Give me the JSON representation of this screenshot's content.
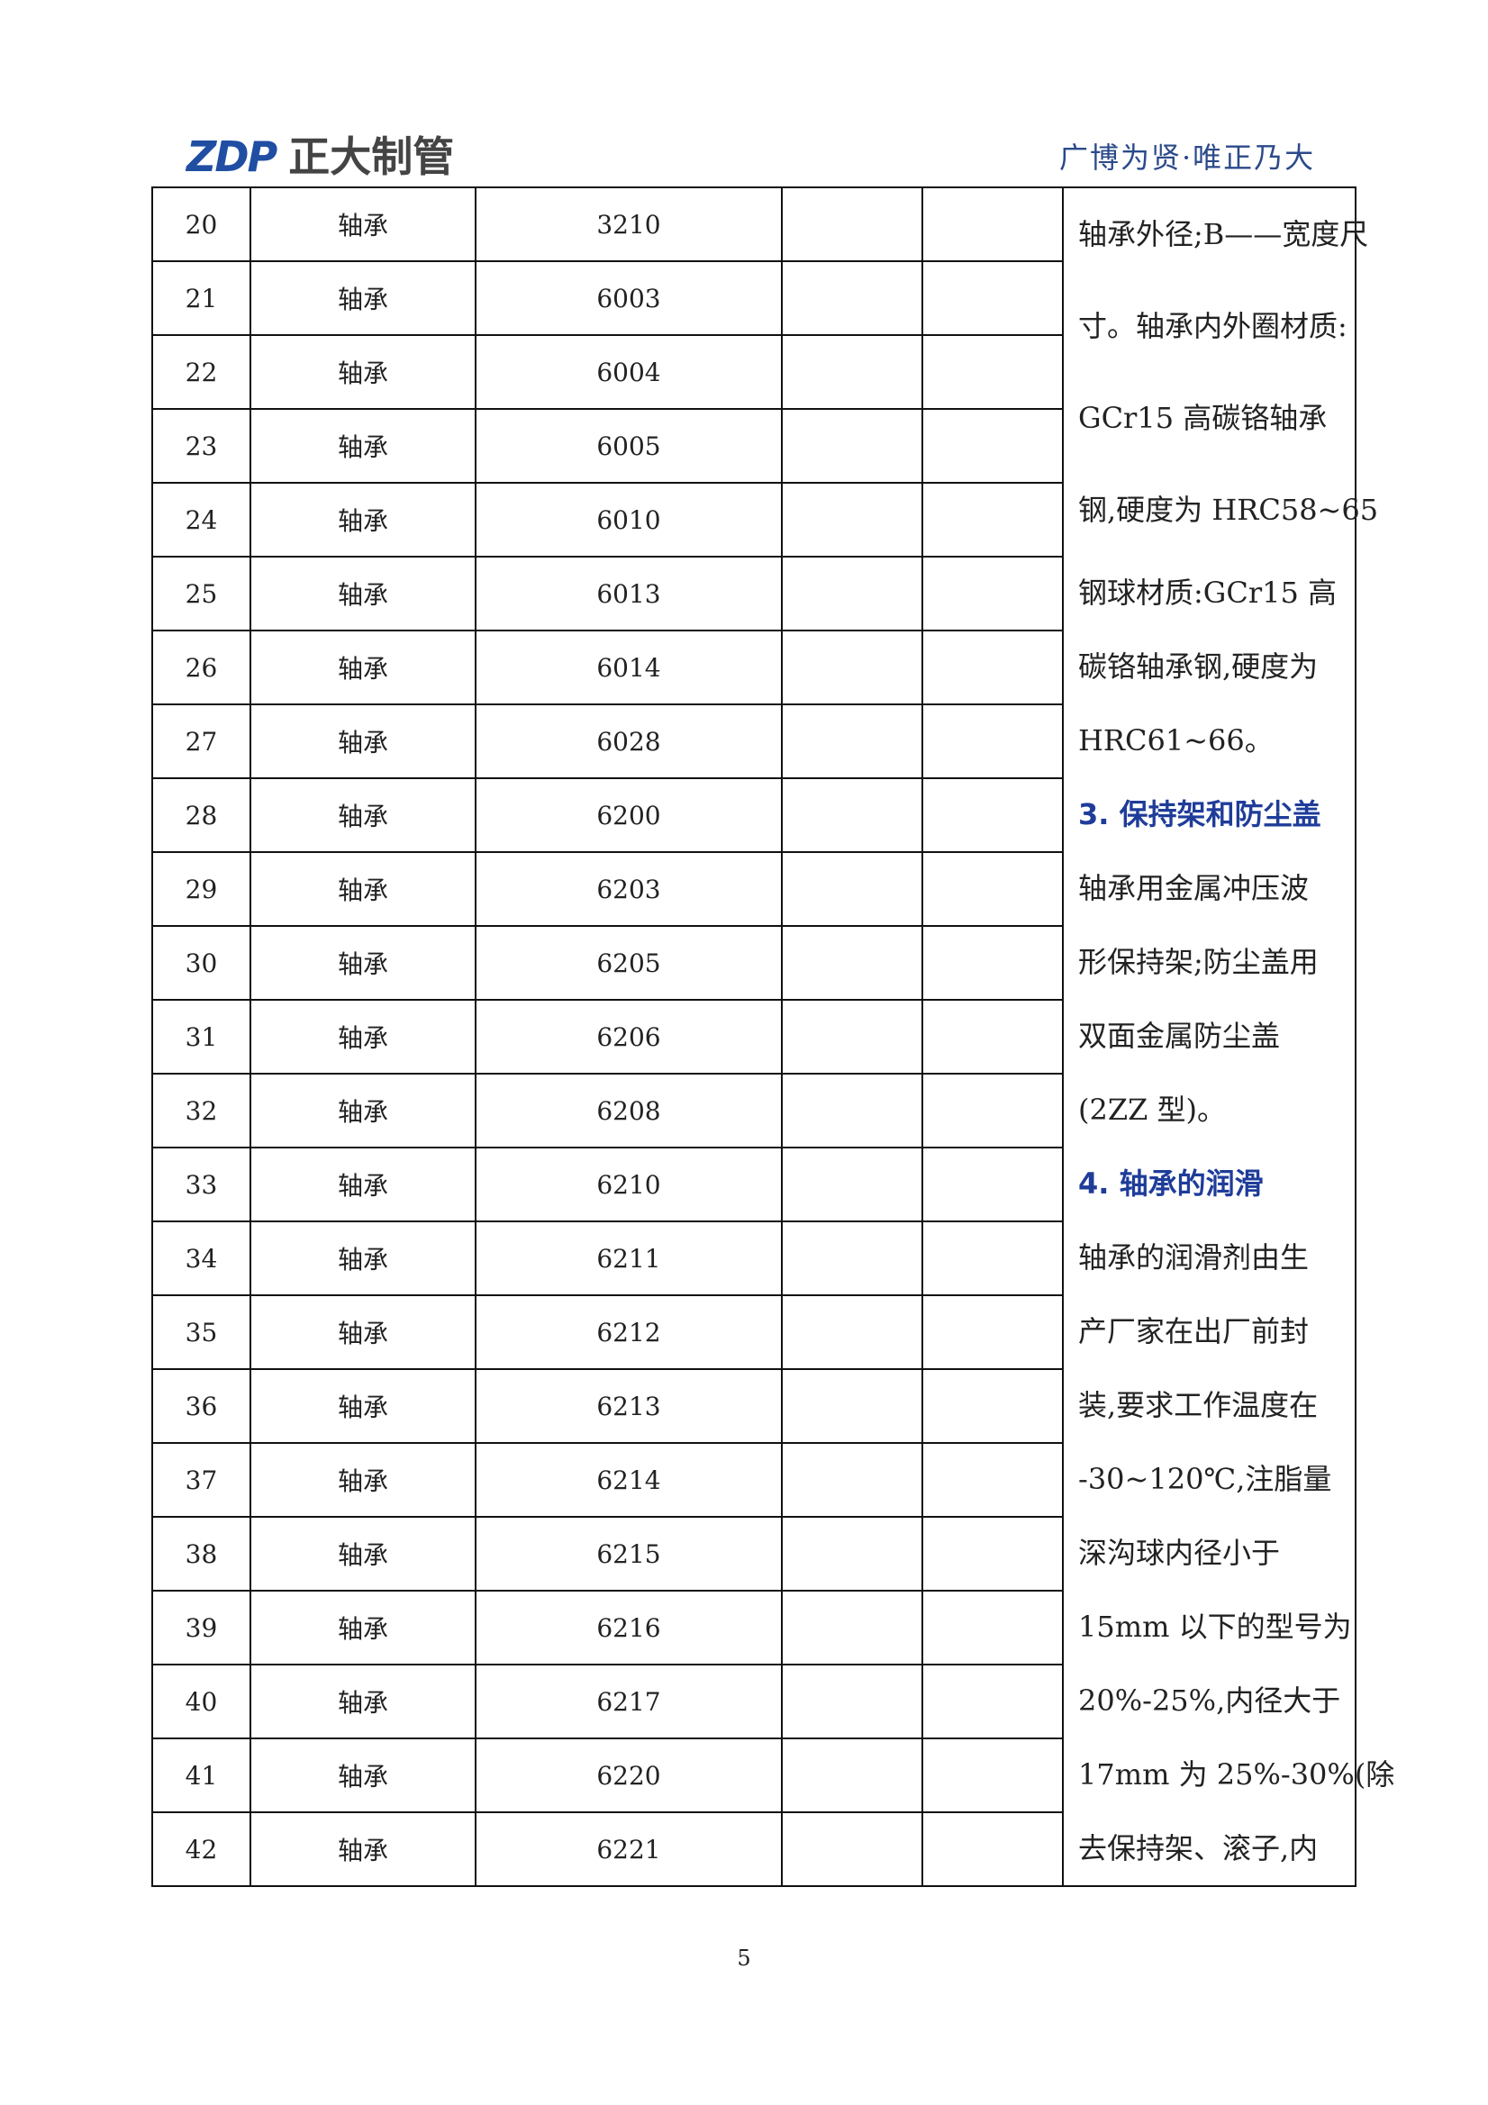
{
  "header": {
    "logo_mark": "ZDP",
    "logo_text": "正大制管",
    "slogan": "广博为贤·唯正乃大"
  },
  "table": {
    "rows": [
      [
        20,
        "轴承",
        "3210"
      ],
      [
        21,
        "轴承",
        "6003"
      ],
      [
        22,
        "轴承",
        "6004"
      ],
      [
        23,
        "轴承",
        "6005"
      ],
      [
        24,
        "轴承",
        "6010"
      ],
      [
        25,
        "轴承",
        "6013"
      ],
      [
        26,
        "轴承",
        "6014"
      ],
      [
        27,
        "轴承",
        "6028"
      ],
      [
        28,
        "轴承",
        "6200"
      ],
      [
        29,
        "轴承",
        "6203"
      ],
      [
        30,
        "轴承",
        "6205"
      ],
      [
        31,
        "轴承",
        "6206"
      ],
      [
        32,
        "轴承",
        "6208"
      ],
      [
        33,
        "轴承",
        "6210"
      ],
      [
        34,
        "轴承",
        "6211"
      ],
      [
        35,
        "轴承",
        "6212"
      ],
      [
        36,
        "轴承",
        "6213"
      ],
      [
        37,
        "轴承",
        "6214"
      ],
      [
        38,
        "轴承",
        "6215"
      ],
      [
        39,
        "轴承",
        "6216"
      ],
      [
        40,
        "轴承",
        "6217"
      ],
      [
        41,
        "轴承",
        "6220"
      ],
      [
        42,
        "轴承",
        "6221"
      ]
    ],
    "side_text": [
      {
        "text": "轴承外径;B——宽度尺"
      },
      {
        "text": "寸。轴承内外圈材质:"
      },
      {
        "text": "GCr15 高碳铬轴承"
      },
      {
        "text": "钢,硬度为 HRC58~65"
      },
      {
        "text": "钢球材质:GCr15 高"
      },
      {
        "text": "碳铬轴承钢,硬度为"
      },
      {
        "text": "HRC61~66。"
      },
      {
        "text": "3. 保持架和防尘盖",
        "heading": true
      },
      {
        "text": "轴承用金属冲压波"
      },
      {
        "text": "形保持架;防尘盖用"
      },
      {
        "text": "双面金属防尘盖"
      },
      {
        "text": "(2ZZ 型)。"
      },
      {
        "text": "4. 轴承的润滑",
        "heading": true
      },
      {
        "text": "轴承的润滑剂由生"
      },
      {
        "text": "产厂家在出厂前封"
      },
      {
        "text": "装,要求工作温度在"
      },
      {
        "text": "-30~120℃,注脂量"
      },
      {
        "text": "深沟球内径小于"
      },
      {
        "text": "15mm 以下的型号为"
      },
      {
        "text": "20%-25%,内径大于"
      },
      {
        "text": "17mm 为 25%-30%(除"
      },
      {
        "text": "去保持架、滚子,内"
      }
    ]
  },
  "footer": {
    "page_number": "5"
  }
}
